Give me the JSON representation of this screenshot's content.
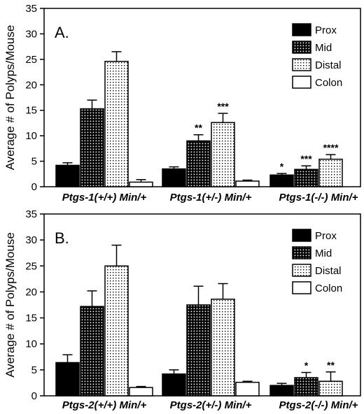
{
  "chart_data": [
    {
      "type": "bar",
      "panel_label": "A.",
      "ylabel": "Average # of Polyps/Mouse",
      "ylim": [
        0,
        35
      ],
      "yticks": [
        0,
        5,
        10,
        15,
        20,
        25,
        30,
        35
      ],
      "categories": [
        "Ptgs-1(+/+) Min/+",
        "Ptgs-1(+/-) Min/+",
        "Ptgs-1(-/-) Min/+"
      ],
      "series": [
        {
          "name": "Prox",
          "values": [
            4.2,
            3.5,
            2.3
          ],
          "errors": [
            0.5,
            0.4,
            0.3
          ],
          "sig": [
            "",
            "",
            "*"
          ]
        },
        {
          "name": "Mid",
          "values": [
            15.3,
            9.0,
            3.4
          ],
          "errors": [
            1.7,
            1.2,
            0.7
          ],
          "sig": [
            "",
            "**",
            "***"
          ]
        },
        {
          "name": "Distal",
          "values": [
            24.6,
            12.6,
            5.4
          ],
          "errors": [
            1.9,
            1.8,
            0.9
          ],
          "sig": [
            "",
            "***",
            "****"
          ]
        },
        {
          "name": "Colon",
          "values": [
            0.9,
            1.1,
            0.0
          ],
          "errors": [
            0.5,
            0.2,
            0.0
          ],
          "sig": [
            "",
            "",
            ""
          ]
        }
      ],
      "legend_position": "top-right"
    },
    {
      "type": "bar",
      "panel_label": "B.",
      "ylabel": "Average # of Polyps/Mouse",
      "ylim": [
        0,
        35
      ],
      "yticks": [
        0,
        5,
        10,
        15,
        20,
        25,
        30,
        35
      ],
      "categories": [
        "Ptgs-2(+/+) Min/+",
        "Ptgs-2(+/-) Min/+",
        "Ptgs-2(-/-) Min/+"
      ],
      "series": [
        {
          "name": "Prox",
          "values": [
            6.4,
            4.2,
            2.0
          ],
          "errors": [
            1.5,
            0.8,
            0.4
          ],
          "sig": [
            "",
            "",
            ""
          ]
        },
        {
          "name": "Mid",
          "values": [
            17.2,
            17.5,
            3.5
          ],
          "errors": [
            3.0,
            3.6,
            1.0
          ],
          "sig": [
            "",
            "",
            "*"
          ]
        },
        {
          "name": "Distal",
          "values": [
            25.0,
            18.6,
            2.8
          ],
          "errors": [
            4.0,
            3.0,
            1.8
          ],
          "sig": [
            "",
            "",
            "**"
          ]
        },
        {
          "name": "Colon",
          "values": [
            1.6,
            2.6,
            0.0
          ],
          "errors": [
            0.2,
            0.2,
            0.0
          ],
          "sig": [
            "",
            "",
            ""
          ]
        }
      ],
      "legend_position": "top-right"
    }
  ]
}
